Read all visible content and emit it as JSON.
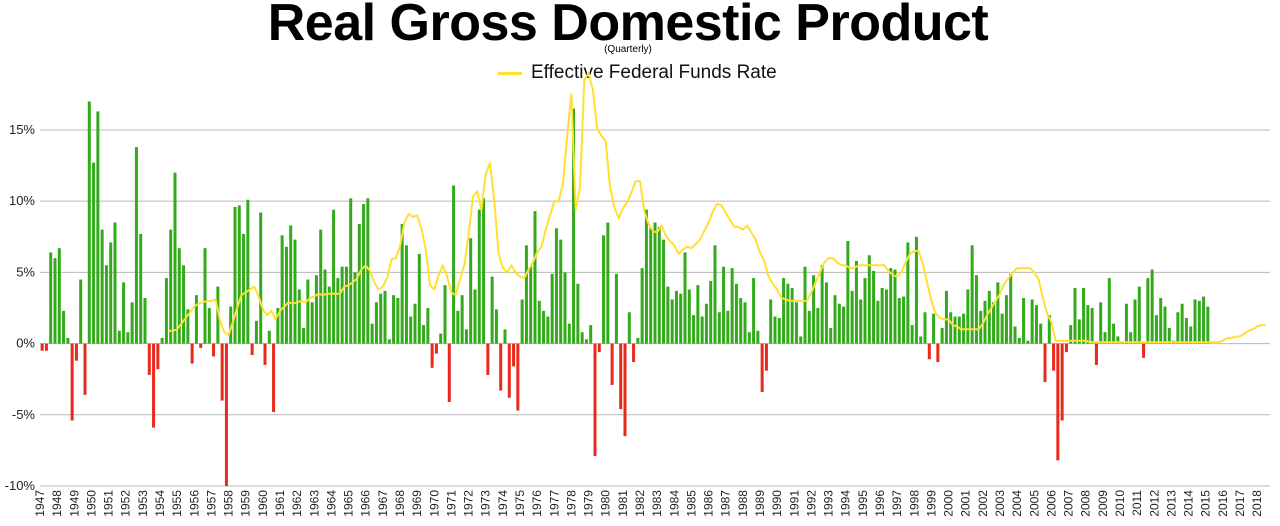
{
  "chart_data": {
    "type": "bar",
    "title": "Real Gross Domestic Product",
    "subtitle": "(Quarterly)",
    "xlabel": "",
    "ylabel": "",
    "ylim": [
      -10,
      19
    ],
    "yticks": [
      -10,
      -5,
      0,
      5,
      10,
      15
    ],
    "ytick_labels": [
      "-10%",
      "-5%",
      "0%",
      "5%",
      "10%",
      "15%"
    ],
    "grid": true,
    "legend": "top-center",
    "x_start": 1947,
    "x_end": 2018.75,
    "years": [
      "1947",
      "1948",
      "1949",
      "1950",
      "1951",
      "1952",
      "1953",
      "1954",
      "1955",
      "1956",
      "1957",
      "1958",
      "1959",
      "1960",
      "1961",
      "1962",
      "1963",
      "1964",
      "1965",
      "1966",
      "1967",
      "1968",
      "1969",
      "1970",
      "1971",
      "1972",
      "1973",
      "1974",
      "1975",
      "1976",
      "1977",
      "1978",
      "1979",
      "1980",
      "1981",
      "1982",
      "1983",
      "1984",
      "1985",
      "1986",
      "1987",
      "1988",
      "1989",
      "1990",
      "1991",
      "1992",
      "1993",
      "1994",
      "1995",
      "1996",
      "1997",
      "1998",
      "1999",
      "2000",
      "2001",
      "2002",
      "2003",
      "2004",
      "2005",
      "2006",
      "2007",
      "2008",
      "2009",
      "2010",
      "2011",
      "2012",
      "2013",
      "2014",
      "2015",
      "2016",
      "2017",
      "2018"
    ],
    "colors": {
      "positive": "#33aa1a",
      "negative": "#e8291c",
      "line": "#ffe031",
      "grid": "#b8b8b8"
    },
    "series": [
      {
        "type": "bar",
        "start": 1947.0,
        "step": 0.25,
        "values": [
          -0.5,
          -0.5,
          6.4,
          6.0,
          6.7,
          2.3,
          0.4,
          -5.4,
          -1.2,
          4.5,
          -3.6,
          17.0,
          12.7,
          16.3,
          8.0,
          5.5,
          7.1,
          8.5,
          0.9,
          4.3,
          0.8,
          2.9,
          13.8,
          7.7,
          3.2,
          -2.2,
          -5.9,
          -1.8,
          0.4,
          4.6,
          8.0,
          12.0,
          6.7,
          5.5,
          2.4,
          -1.4,
          3.4,
          -0.3,
          6.7,
          2.5,
          -0.9,
          4.0,
          -4.0,
          -10.0,
          2.6,
          9.6,
          9.7,
          7.7,
          10.1,
          -0.8,
          1.6,
          9.2,
          -1.5,
          0.9,
          -4.8,
          2.5,
          7.6,
          6.8,
          8.3,
          7.3,
          3.8,
          1.1,
          4.5,
          2.9,
          4.8,
          8.0,
          5.2,
          4.0,
          9.4,
          4.6,
          5.4,
          5.4,
          10.2,
          5.0,
          8.4,
          9.8,
          10.2,
          1.4,
          2.9,
          3.5,
          3.7,
          0.3,
          3.4,
          3.2,
          8.4,
          6.9,
          1.9,
          2.8,
          6.3,
          1.3,
          2.5,
          -1.7,
          -0.7,
          0.7,
          4.1,
          -4.1,
          11.1,
          2.3,
          3.4,
          1.0,
          7.4,
          3.8,
          9.4,
          10.2,
          -2.2,
          4.7,
          2.4,
          -3.3,
          1.0,
          -3.8,
          -1.6,
          -4.7,
          3.1,
          6.9,
          5.4,
          9.3,
          3.0,
          2.3,
          1.9,
          4.9,
          8.1,
          7.3,
          5.0,
          1.4,
          16.5,
          4.2,
          0.8,
          0.3,
          1.3,
          -7.9,
          -0.6,
          7.6,
          8.5,
          -2.9,
          4.9,
          -4.6,
          -6.5,
          2.2,
          -1.3,
          0.4,
          5.3,
          9.4,
          8.1,
          8.5,
          8.2,
          7.3,
          4.0,
          3.1,
          3.7,
          3.5,
          6.4,
          3.8,
          2.0,
          4.1,
          1.9,
          2.8,
          4.4,
          6.9,
          2.2,
          5.4,
          2.3,
          5.3,
          4.2,
          3.2,
          2.9,
          0.8,
          4.6,
          0.9,
          -3.4,
          -1.9,
          3.1,
          1.9,
          1.8,
          4.6,
          4.2,
          3.9,
          2.9,
          0.5,
          5.4,
          2.3,
          4.8,
          2.5,
          5.5,
          4.3,
          1.1,
          3.4,
          2.8,
          2.6,
          7.2,
          3.7,
          5.8,
          3.1,
          4.6,
          6.2,
          5.1,
          3.0,
          3.9,
          3.8,
          5.3,
          5.2,
          3.2,
          3.3,
          7.1,
          1.3,
          7.5,
          0.5,
          2.2,
          -1.1,
          2.1,
          -1.3,
          1.1,
          3.7,
          2.2,
          1.9,
          1.9,
          2.1,
          3.8,
          6.9,
          4.8,
          2.3,
          3.0,
          3.7,
          2.9,
          4.3,
          2.1,
          3.4,
          4.9,
          1.2,
          0.4,
          3.2,
          0.2,
          3.1,
          2.7,
          1.4,
          -2.7,
          2.0,
          -1.9,
          -8.2,
          -5.4,
          -0.6,
          1.3,
          3.9,
          1.7,
          3.9,
          2.7,
          2.5,
          -1.5,
          2.9,
          0.8,
          4.6,
          1.4,
          0.5,
          0.1,
          2.8,
          0.8,
          3.1,
          4.0,
          -1.0,
          4.6,
          5.2,
          2.0,
          3.2,
          2.6,
          1.1,
          0.2,
          2.2,
          2.8,
          1.8,
          1.2,
          3.1,
          3.0,
          3.3,
          2.6
        ]
      },
      {
        "type": "line",
        "name": "Effective Federal Funds Rate",
        "start": 1954.5,
        "step": 0.25,
        "values": [
          0.9,
          0.9,
          1.0,
          1.4,
          1.8,
          2.2,
          2.6,
          2.8,
          2.9,
          3.0,
          3.0,
          3.1,
          1.6,
          0.8,
          0.6,
          1.5,
          2.5,
          3.4,
          3.6,
          3.8,
          4.0,
          3.3,
          2.4,
          2.0,
          2.3,
          1.7,
          2.3,
          2.6,
          2.9,
          2.8,
          2.9,
          3.0,
          2.9,
          3.2,
          3.3,
          3.5,
          3.4,
          3.5,
          3.5,
          3.5,
          3.5,
          4.0,
          4.1,
          4.3,
          4.6,
          5.2,
          5.5,
          5.1,
          4.3,
          3.8,
          4.0,
          4.6,
          5.9,
          6.0,
          6.8,
          8.5,
          9.1,
          8.9,
          9.0,
          8.1,
          6.6,
          4.1,
          3.8,
          4.8,
          5.5,
          4.7,
          3.6,
          3.4,
          4.5,
          5.5,
          7.6,
          10.3,
          10.7,
          9.4,
          11.9,
          12.7,
          10.0,
          6.3,
          5.3,
          5.0,
          5.5,
          5.0,
          4.7,
          4.6,
          5.2,
          5.7,
          6.4,
          6.8,
          8.0,
          9.0,
          10.0,
          10.0,
          11.2,
          14.5,
          17.5,
          9.4,
          11.0,
          18.5,
          19.0,
          17.8,
          15.1,
          14.6,
          14.2,
          11.0,
          9.6,
          8.8,
          9.5,
          9.9,
          10.6,
          11.4,
          11.4,
          9.3,
          8.4,
          7.9,
          7.8,
          8.3,
          7.6,
          7.2,
          6.9,
          6.3,
          6.6,
          6.8,
          6.7,
          7.0,
          7.3,
          7.9,
          8.5,
          9.3,
          9.8,
          9.7,
          9.2,
          8.7,
          8.2,
          8.2,
          8.0,
          8.3,
          7.8,
          7.3,
          6.4,
          5.8,
          4.7,
          4.2,
          3.8,
          3.2,
          3.1,
          3.0,
          3.0,
          3.0,
          3.0,
          3.0,
          3.6,
          4.3,
          5.0,
          5.7,
          6.0,
          6.0,
          5.7,
          5.5,
          5.5,
          5.3,
          5.3,
          5.5,
          5.5,
          5.5,
          5.5,
          5.5,
          5.5,
          5.5,
          5.1,
          4.8,
          4.7,
          5.0,
          5.7,
          6.3,
          6.5,
          6.5,
          5.6,
          4.3,
          3.0,
          2.1,
          1.8,
          1.7,
          1.7,
          1.3,
          1.2,
          1.0,
          1.0,
          1.0,
          1.0,
          1.0,
          1.4,
          2.0,
          2.5,
          3.0,
          3.5,
          4.2,
          4.6,
          5.0,
          5.3,
          5.3,
          5.3,
          5.3,
          5.0,
          4.5,
          3.2,
          2.1,
          1.5,
          0.2,
          0.2,
          0.2,
          0.2,
          0.2,
          0.2,
          0.2,
          0.2,
          0.1,
          0.1,
          0.1,
          0.1,
          0.1,
          0.1,
          0.1,
          0.1,
          0.1,
          0.1,
          0.1,
          0.1,
          0.1,
          0.1,
          0.1,
          0.1,
          0.1,
          0.1,
          0.1,
          0.1,
          0.1,
          0.1,
          0.1,
          0.1,
          0.1,
          0.1,
          0.1,
          0.1,
          0.1,
          0.1,
          0.1,
          0.2,
          0.4,
          0.4,
          0.5,
          0.5,
          0.7,
          0.9,
          1.0,
          1.2,
          1.3,
          1.3
        ]
      }
    ]
  }
}
